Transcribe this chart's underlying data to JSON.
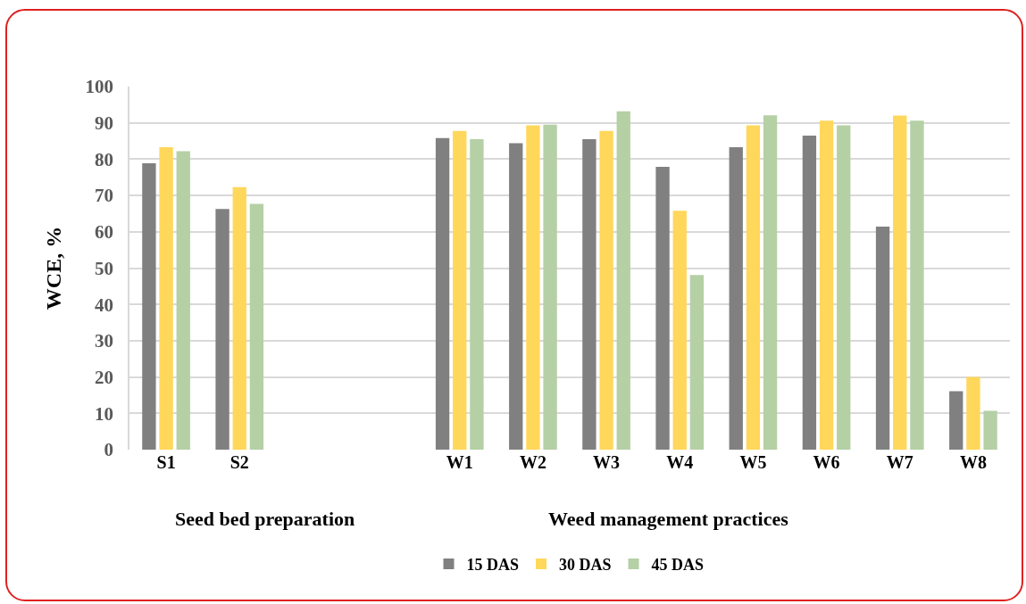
{
  "chart_data": {
    "type": "bar",
    "ylabel": "WCE, %",
    "categories": [
      "S1",
      "S2",
      null,
      null,
      "W1",
      "W2",
      "W3",
      "W4",
      "W5",
      "W6",
      "W7",
      "W8"
    ],
    "series": [
      {
        "name": "15 DAS",
        "color": "#808080",
        "values": [
          78.9,
          66.3,
          null,
          null,
          85.8,
          84.4,
          85.5,
          77.9,
          83.3,
          86.5,
          61.4,
          16.1
        ]
      },
      {
        "name": "30 DAS",
        "color": "#ffd75a",
        "values": [
          83.3,
          72.3,
          null,
          null,
          87.8,
          89.3,
          87.8,
          65.8,
          89.3,
          90.6,
          92.0,
          20.0
        ]
      },
      {
        "name": "45 DAS",
        "color": "#b5d0a5",
        "values": [
          82.2,
          67.7,
          null,
          null,
          85.5,
          89.5,
          93.2,
          48.1,
          92.1,
          89.3,
          90.6,
          10.7
        ]
      }
    ],
    "ylim": [
      0,
      100
    ],
    "yticks": [
      0,
      10,
      20,
      30,
      40,
      50,
      60,
      70,
      80,
      90,
      100
    ],
    "grid": "y",
    "legend": "bottom",
    "annotations": [
      "Seed bed preparation",
      "Weed management practices"
    ]
  }
}
